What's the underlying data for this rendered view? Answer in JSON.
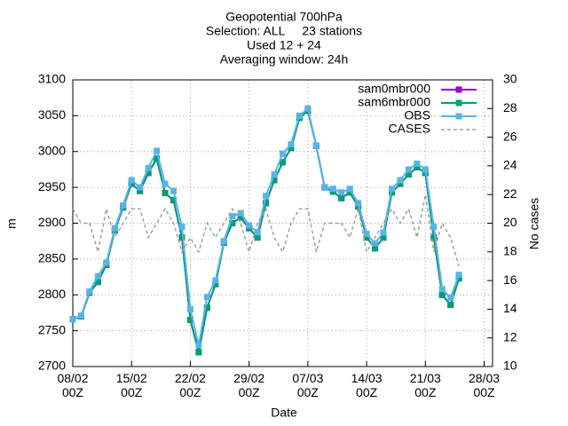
{
  "chart_data": {
    "type": "line",
    "title": [
      "Geopotential 700hPa",
      "Selection: ALL     23 stations",
      "Used 12 + 24",
      "Averaging window: 24h"
    ],
    "x_label": "Date",
    "y_label": "m",
    "y2_label": "No cases",
    "x": [
      "08/02 00Z",
      "09/02 00Z",
      "10/02 00Z",
      "11/02 00Z",
      "12/02 00Z",
      "13/02 00Z",
      "14/02 00Z",
      "15/02 00Z",
      "16/02 00Z",
      "17/02 00Z",
      "18/02 00Z",
      "19/02 00Z",
      "20/02 00Z",
      "21/02 00Z",
      "22/02 00Z",
      "23/02 00Z",
      "24/02 00Z",
      "25/02 00Z",
      "26/02 00Z",
      "27/02 00Z",
      "28/02 00Z",
      "29/02 00Z",
      "01/03 00Z",
      "02/03 00Z",
      "03/03 00Z",
      "04/03 00Z",
      "05/03 00Z",
      "06/03 00Z",
      "07/03 00Z",
      "08/03 00Z",
      "09/03 00Z",
      "10/03 00Z",
      "11/03 00Z",
      "12/03 00Z",
      "13/03 00Z",
      "14/03 00Z",
      "15/03 00Z",
      "16/03 00Z",
      "17/03 00Z",
      "18/03 00Z",
      "19/03 00Z",
      "20/03 00Z",
      "21/03 00Z",
      "22/03 00Z",
      "23/03 00Z",
      "24/03 00Z",
      "25/03 00Z"
    ],
    "series": [
      {
        "name": "sam0mbr000",
        "color": "#9400d3",
        "marker": true,
        "values": [
          2766,
          2770,
          2803,
          2818,
          2842,
          2890,
          2922,
          2955,
          2945,
          2970,
          2990,
          2942,
          2932,
          2880,
          2765,
          2720,
          2782,
          2815,
          2873,
          2900,
          2908,
          2893,
          2880,
          2928,
          2960,
          2985,
          3005,
          3047,
          3057,
          3008,
          2950,
          2944,
          2935,
          2943,
          2923,
          2880,
          2865,
          2880,
          2943,
          2955,
          2968,
          2978,
          2970,
          2880,
          2800,
          2786,
          2823
        ]
      },
      {
        "name": "sam6mbr000",
        "color": "#009e73",
        "marker": true,
        "values": [
          2766,
          2770,
          2803,
          2818,
          2842,
          2890,
          2922,
          2955,
          2945,
          2970,
          2990,
          2942,
          2932,
          2880,
          2765,
          2720,
          2782,
          2815,
          2873,
          2900,
          2908,
          2893,
          2880,
          2928,
          2960,
          2985,
          3005,
          3047,
          3057,
          3008,
          2950,
          2944,
          2935,
          2943,
          2923,
          2880,
          2865,
          2880,
          2943,
          2955,
          2968,
          2978,
          2970,
          2880,
          2800,
          2786,
          2823
        ]
      },
      {
        "name": "OBS",
        "color": "#56b4e9",
        "marker": true,
        "values": [
          2766,
          2771,
          2805,
          2826,
          2845,
          2893,
          2925,
          2960,
          2950,
          2977,
          3001,
          2955,
          2945,
          2895,
          2780,
          2730,
          2797,
          2820,
          2875,
          2910,
          2914,
          2897,
          2887,
          2938,
          2968,
          2997,
          3010,
          3050,
          3060,
          3008,
          2950,
          2948,
          2943,
          2948,
          2928,
          2885,
          2872,
          2887,
          2948,
          2960,
          2975,
          2983,
          2975,
          2895,
          2808,
          2796,
          2828
        ]
      },
      {
        "name": "CASES",
        "color": "#a0a0a0",
        "dash": true,
        "axis": "y2",
        "values": [
          21,
          20,
          20,
          18,
          21,
          19,
          20,
          21,
          21,
          19,
          20,
          21,
          20,
          18,
          19,
          18,
          20,
          19,
          20,
          21,
          20,
          18,
          20,
          21,
          19,
          18,
          20,
          21,
          21,
          18,
          20,
          20,
          20,
          19,
          21,
          18,
          19,
          20,
          21,
          20,
          21,
          19,
          22,
          18,
          20,
          19,
          17
        ]
      }
    ],
    "xlim": [
      "08/02 00Z",
      "29/03 00Z"
    ],
    "xticks": [
      "08/02 00Z",
      "15/02 00Z",
      "22/02 00Z",
      "29/02 00Z",
      "07/03 00Z",
      "14/03 00Z",
      "21/03 00Z",
      "28/03 00Z"
    ],
    "ylim": [
      2700,
      3100
    ],
    "yticks": [
      2700,
      2750,
      2800,
      2850,
      2900,
      2950,
      3000,
      3050,
      3100
    ],
    "y2lim": [
      10,
      30
    ],
    "y2ticks": [
      10,
      12,
      14,
      16,
      18,
      20,
      22,
      24,
      26,
      28,
      30
    ],
    "grid": true,
    "legend": "top-right"
  }
}
